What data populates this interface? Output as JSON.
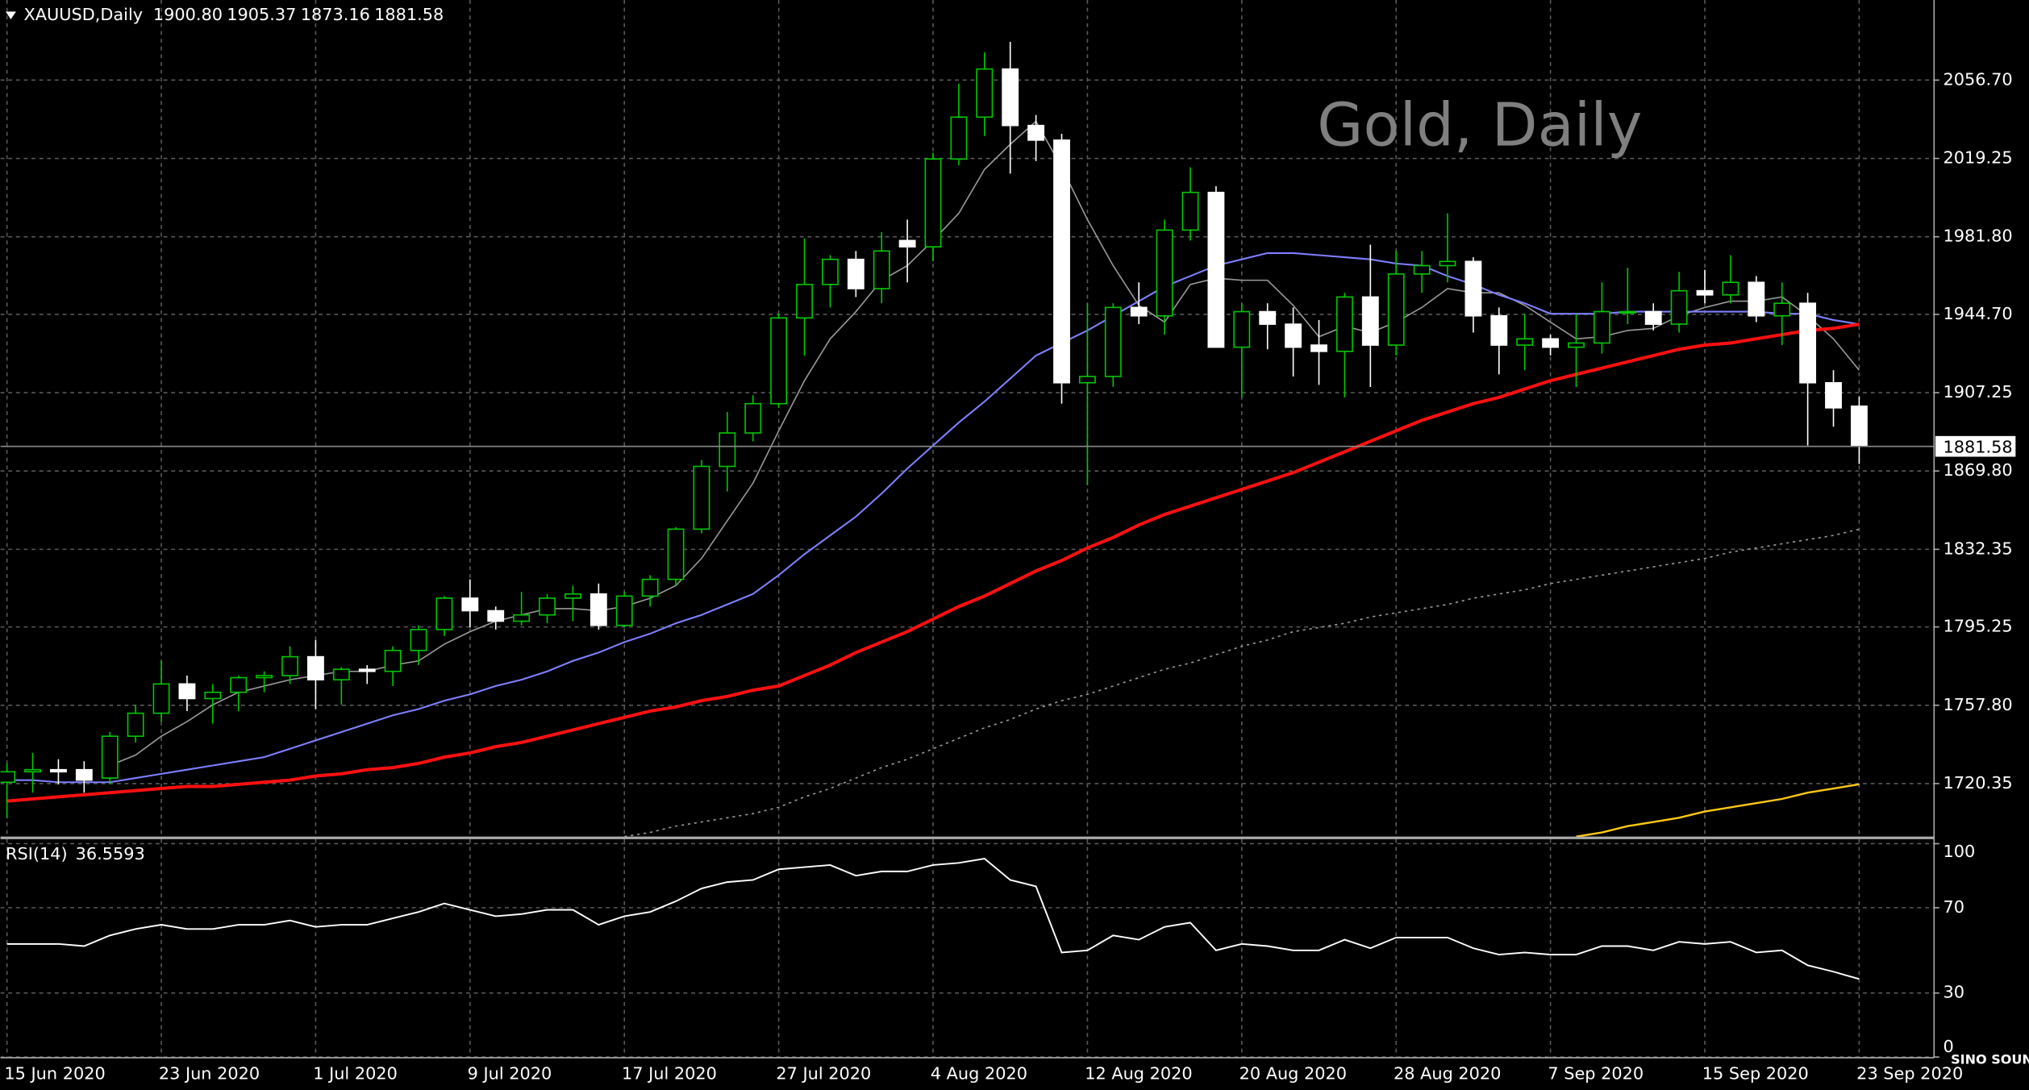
{
  "chart_data": [
    {
      "type": "candlestick",
      "title": "XAUUSD,Daily",
      "last_bar_labels": {
        "open": "1900.80",
        "high": "1905.37",
        "low": "1873.16",
        "close": "1881.58"
      },
      "annotation": "Gold, Daily",
      "categories": [
        "15 Jun 2020",
        null,
        null,
        null,
        null,
        null,
        "23 Jun 2020",
        null,
        null,
        null,
        null,
        null,
        "1 Jul 2020",
        null,
        null,
        null,
        null,
        null,
        "9 Jul 2020",
        null,
        null,
        null,
        null,
        null,
        "17 Jul 2020",
        null,
        null,
        null,
        null,
        null,
        "27 Jul 2020",
        null,
        null,
        null,
        null,
        null,
        "4 Aug 2020",
        null,
        null,
        null,
        null,
        null,
        "12 Aug 2020",
        null,
        null,
        null,
        null,
        null,
        "20 Aug 2020",
        null,
        null,
        null,
        null,
        null,
        "28 Aug 2020",
        null,
        null,
        null,
        null,
        null,
        "7 Sep 2020",
        null,
        null,
        null,
        null,
        null,
        "15 Sep 2020",
        null,
        null,
        null,
        null,
        null,
        "23 Sep 2020"
      ],
      "open": [
        1721,
        1726,
        1727,
        1727,
        1723,
        1743,
        1754,
        1768,
        1761,
        1764,
        1771,
        1772,
        1781,
        1770,
        1775,
        1774,
        1784,
        1794,
        1809,
        1803,
        1798,
        1801,
        1809,
        1811,
        1796,
        1810,
        1818,
        1842,
        1872,
        1888,
        1902,
        1943,
        1959,
        1971,
        1957,
        1980,
        1977,
        2019,
        2039,
        2062,
        2035,
        2028,
        1912,
        1915,
        1948,
        1944,
        1985,
        2003,
        1929,
        1946,
        1940,
        1930,
        1927,
        1953,
        1930,
        1964,
        1968,
        1970,
        1944,
        1930,
        1933,
        1929,
        1931,
        1946,
        1946,
        1940,
        1956,
        1954,
        1960,
        1944,
        1950,
        1912,
        1900.8
      ],
      "high": [
        1730,
        1735,
        1732,
        1731,
        1745,
        1758,
        1779,
        1772,
        1768,
        1772,
        1774,
        1786,
        1789,
        1776,
        1777,
        1786,
        1796,
        1810,
        1818,
        1805,
        1812,
        1811,
        1815,
        1816,
        1812,
        1820,
        1843,
        1875,
        1898,
        1906,
        1945,
        1981,
        1973,
        1975,
        1984,
        1990,
        2022,
        2055,
        2070,
        2075,
        2040,
        2031,
        1950,
        1950,
        1960,
        1990,
        2015,
        2006,
        1950,
        1950,
        1948,
        1942,
        1955,
        1978,
        1975,
        1975,
        1993,
        1972,
        1948,
        1945,
        1935,
        1945,
        1960,
        1967,
        1950,
        1965,
        1966,
        1973,
        1963,
        1960,
        1955,
        1918,
        1905.37
      ],
      "low": [
        1704,
        1716,
        1720,
        1716,
        1720,
        1740,
        1750,
        1755,
        1749,
        1755,
        1764,
        1768,
        1756,
        1758,
        1768,
        1767,
        1777,
        1791,
        1795,
        1794,
        1796,
        1797,
        1798,
        1794,
        1795,
        1805,
        1815,
        1840,
        1860,
        1884,
        1900,
        1925,
        1948,
        1953,
        1950,
        1960,
        1970,
        2016,
        2030,
        2012,
        2018,
        1902,
        1863,
        1910,
        1940,
        1935,
        1980,
        1929,
        1905,
        1928,
        1915,
        1911,
        1905,
        1910,
        1925,
        1955,
        1960,
        1936,
        1916,
        1918,
        1925,
        1910,
        1926,
        1940,
        1937,
        1936,
        1950,
        1950,
        1941,
        1930,
        1882,
        1891,
        1873.16
      ],
      "close": [
        1726,
        1727,
        1726,
        1722,
        1743,
        1754,
        1768,
        1761,
        1764,
        1771,
        1772,
        1781,
        1770,
        1775,
        1774,
        1784,
        1794,
        1809,
        1803,
        1798,
        1801,
        1809,
        1811,
        1796,
        1810,
        1818,
        1842,
        1872,
        1888,
        1902,
        1943,
        1959,
        1971,
        1957,
        1975,
        1977,
        2019,
        2039,
        2062,
        2035,
        2028,
        1912,
        1915,
        1948,
        1944,
        1985,
        2003,
        1929,
        1946,
        1940,
        1929,
        1927,
        1953,
        1930,
        1964,
        1968,
        1970,
        1944,
        1930,
        1933,
        1929,
        1931,
        1946,
        1946,
        1940,
        1956,
        1954,
        1960,
        1944,
        1950,
        1912,
        1900,
        1881.58
      ],
      "up_color": "#00c800",
      "down_color": "#ffffff",
      "ylim": [
        1694.4,
        2095.0
      ],
      "yticks": [
        {
          "value": 2056.7,
          "label": "2056.70"
        },
        {
          "value": 2019.25,
          "label": "2019.25"
        },
        {
          "value": 1981.8,
          "label": "1981.80"
        },
        {
          "value": 1944.7,
          "label": "1944.70"
        },
        {
          "value": 1907.25,
          "label": "1907.25"
        },
        {
          "value": 1869.8,
          "label": "1869.80"
        },
        {
          "value": 1832.35,
          "label": "1832.35"
        },
        {
          "value": 1795.25,
          "label": "1795.25"
        },
        {
          "value": 1757.8,
          "label": "1757.80"
        },
        {
          "value": 1720.35,
          "label": "1720.35"
        }
      ],
      "grid": true,
      "overlays": [
        {
          "color": "#9a9a9a",
          "width": 1,
          "dashed": false,
          "values": [
            null,
            null,
            null,
            null,
            1729,
            1734,
            1743,
            1750,
            1758,
            1764,
            1767,
            1770,
            1772,
            1774,
            1774,
            1777,
            1779,
            1787,
            1793,
            1798,
            1801,
            1804,
            1804,
            1803,
            1805,
            1809,
            1815,
            1828,
            1846,
            1864,
            1889,
            1913,
            1933,
            1946,
            1961,
            1968,
            1980,
            1993,
            2014,
            2026,
            2037,
            2015,
            1990,
            1968,
            1949,
            1941,
            1959,
            1962,
            1961,
            1961,
            1949,
            1934,
            1939,
            1936,
            1941,
            1948,
            1957,
            1955,
            1955,
            1949,
            1941,
            1933,
            1934,
            1937,
            1938,
            1944,
            1948,
            1951,
            1951,
            1953,
            1944,
            1933,
            1918
          ]
        },
        {
          "color": "#7f7fff",
          "width": 1.3,
          "dashed": false,
          "values": [
            1722,
            1722,
            1721,
            1721,
            1721,
            1723,
            1725,
            1727,
            1729,
            1731,
            1733,
            1737,
            1741,
            1745,
            1749,
            1753,
            1756,
            1760,
            1763,
            1767,
            1770,
            1774,
            1779,
            1783,
            1788,
            1792,
            1797,
            1801,
            1806,
            1811,
            1820,
            1830,
            1839,
            1848,
            1859,
            1871,
            1882,
            1893,
            1903,
            1914,
            1925,
            1931,
            1937,
            1944,
            1951,
            1958,
            1963,
            1968,
            1971,
            1974,
            1974,
            1973,
            1972,
            1971,
            1969,
            1968,
            1963,
            1959,
            1954,
            1950,
            1945,
            1945,
            1945,
            1946,
            1946,
            1946,
            1946,
            1946,
            1946,
            1945,
            1945,
            1942,
            1940
          ]
        },
        {
          "color": "#ff1010",
          "width": 2.5,
          "dashed": false,
          "values": [
            1712,
            1713,
            1714,
            1715,
            1716,
            1717,
            1718,
            1719,
            1719,
            1720,
            1721,
            1722,
            1724,
            1725,
            1727,
            1728,
            1730,
            1733,
            1735,
            1738,
            1740,
            1743,
            1746,
            1749,
            1752,
            1755,
            1757,
            1760,
            1762,
            1765,
            1767,
            1772,
            1777,
            1783,
            1788,
            1793,
            1799,
            1805,
            1810,
            1816,
            1822,
            1827,
            1833,
            1838,
            1844,
            1849,
            1853,
            1857,
            1861,
            1865,
            1869,
            1874,
            1879,
            1884,
            1889,
            1894,
            1898,
            1902,
            1905,
            1909,
            1913,
            1916,
            1919,
            1922,
            1925,
            1928,
            1930,
            1931,
            1933,
            1935,
            1937,
            1938,
            1940
          ]
        },
        {
          "color": "#9a9a9a",
          "width": 1,
          "dashed": true,
          "values": [
            null,
            null,
            null,
            null,
            null,
            null,
            null,
            null,
            null,
            null,
            null,
            null,
            null,
            null,
            null,
            null,
            null,
            null,
            null,
            null,
            null,
            null,
            null,
            null,
            1695,
            1697,
            1700,
            1702,
            1704,
            1706,
            1709,
            1714,
            1718,
            1723,
            1728,
            1732,
            1737,
            1742,
            1747,
            1751,
            1756,
            1760,
            1763,
            1767,
            1771,
            1775,
            1778,
            1782,
            1786,
            1789,
            1793,
            1795,
            1797,
            1800,
            1802,
            1804,
            1806,
            1809,
            1811,
            1813,
            1816,
            1818,
            1820,
            1822,
            1824,
            1826,
            1828,
            1831,
            1833,
            1835,
            1837,
            1839,
            1842
          ]
        },
        {
          "color": "#ffc814",
          "width": 1.5,
          "dashed": false,
          "values": [
            null,
            null,
            null,
            null,
            null,
            null,
            null,
            null,
            null,
            null,
            null,
            null,
            null,
            null,
            null,
            null,
            null,
            null,
            null,
            null,
            null,
            null,
            null,
            null,
            null,
            null,
            null,
            null,
            null,
            null,
            null,
            null,
            null,
            null,
            null,
            null,
            null,
            null,
            null,
            null,
            null,
            null,
            null,
            null,
            null,
            null,
            null,
            null,
            null,
            null,
            null,
            null,
            null,
            null,
            null,
            null,
            null,
            null,
            null,
            null,
            null,
            1695,
            1697,
            1700,
            1702,
            1704,
            1707,
            1709,
            1711,
            1713,
            1716,
            1718,
            1720
          ]
        }
      ]
    },
    {
      "type": "line",
      "title": "RSI(14)",
      "values": [
        53,
        53,
        53,
        52,
        57,
        60,
        62,
        60,
        60,
        62,
        62,
        64,
        61,
        62,
        62,
        65,
        68,
        72,
        69,
        66,
        67,
        69,
        69,
        62,
        66,
        68,
        73,
        79,
        82,
        83,
        88,
        89,
        90,
        85,
        87,
        87,
        90,
        91,
        93,
        83,
        80,
        49,
        50,
        57,
        55,
        61,
        63,
        50,
        53,
        52,
        50,
        50,
        55,
        51,
        56,
        56,
        56,
        51,
        48,
        49,
        48,
        48,
        52,
        52,
        50,
        54,
        53,
        54,
        49,
        50,
        43,
        40,
        36.5593
      ],
      "color": "#ffffff",
      "ylim": [
        0,
        100
      ],
      "yticks": [
        100,
        70,
        30,
        0
      ],
      "grid": true
    }
  ],
  "logo": "SINO SOUND"
}
